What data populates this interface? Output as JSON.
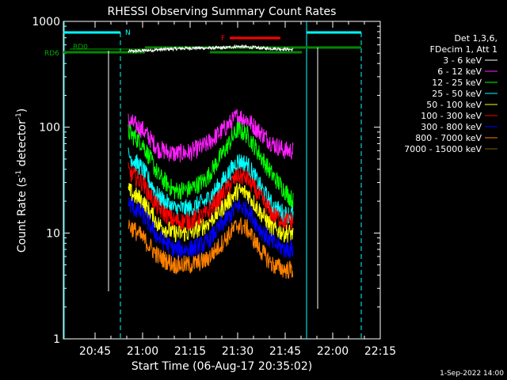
{
  "chart_data": {
    "type": "line",
    "title": "RHESSI Observing Summary Count Rates",
    "xlabel": "Start Time (06-Aug-17 20:35:02)",
    "ylabel_main": "Count Rate (s",
    "ylabel_sup": "-1",
    "ylabel_mid": " detector",
    "ylabel_sup2": "-1",
    "ylabel_end": ")",
    "y_scale": "log",
    "ylim": [
      1,
      1000
    ],
    "x_range_minutes": [
      0,
      100
    ],
    "xticks": [
      {
        "label": "20:45",
        "t": 10
      },
      {
        "label": "21:00",
        "t": 25
      },
      {
        "label": "21:15",
        "t": 40
      },
      {
        "label": "21:30",
        "t": 55
      },
      {
        "label": "21:45",
        "t": 70
      },
      {
        "label": "22:00",
        "t": 85
      },
      {
        "label": "22:15",
        "t": 100
      }
    ],
    "yticks": [
      {
        "label": "1",
        "v": 1
      },
      {
        "label": "10",
        "v": 10
      },
      {
        "label": "100",
        "v": 100
      },
      {
        "label": "1000",
        "v": 1000
      }
    ],
    "legend_header": [
      "Det 1,3,6,",
      "FDecim 1, Att 1"
    ],
    "series": [
      {
        "name": "3 - 6 keV",
        "color": "#ffffff",
        "x": [
          20.5,
          30,
          40,
          50,
          55,
          62,
          68.5,
          72.5
        ],
        "values": [
          520,
          540,
          560,
          560,
          580,
          560,
          550,
          540
        ]
      },
      {
        "name": "6 - 12 keV",
        "color": "#ff20ff",
        "x": [
          20.5,
          25,
          30,
          35,
          40,
          45,
          50,
          55,
          58,
          62,
          66,
          70,
          72.5
        ],
        "values": [
          115,
          95,
          62,
          56,
          58,
          68,
          92,
          128,
          118,
          90,
          70,
          60,
          60
        ]
      },
      {
        "name": "12 - 25 keV",
        "color": "#00ff00",
        "x": [
          20.5,
          25,
          30,
          35,
          40,
          45,
          50,
          55,
          58,
          62,
          66,
          70,
          72.5
        ],
        "values": [
          90,
          70,
          35,
          25,
          26,
          32,
          55,
          95,
          85,
          55,
          35,
          25,
          20
        ]
      },
      {
        "name": "25 - 50 keV",
        "color": "#00ffff",
        "x": [
          20.5,
          25,
          30,
          35,
          40,
          45,
          50,
          55,
          58,
          62,
          66,
          70,
          72.5
        ],
        "values": [
          55,
          40,
          22,
          17,
          17,
          20,
          30,
          48,
          45,
          28,
          18,
          15,
          15
        ]
      },
      {
        "name": "50 - 100 keV",
        "color": "#ffff00",
        "x": [
          20.5,
          25,
          30,
          35,
          40,
          45,
          50,
          55,
          58,
          62,
          66,
          70,
          72.5
        ],
        "values": [
          25,
          20,
          12,
          10,
          10,
          12,
          17,
          25,
          24,
          16,
          11,
          10,
          10
        ]
      },
      {
        "name": "100 - 300 keV",
        "color": "#ff0000",
        "x": [
          20.5,
          25,
          30,
          35,
          40,
          45,
          50,
          55,
          58,
          62,
          66,
          70,
          72.5
        ],
        "values": [
          38,
          30,
          17,
          13,
          13,
          15,
          23,
          35,
          33,
          22,
          15,
          13,
          13
        ]
      },
      {
        "name": "300 - 800 keV",
        "color": "#0000ff",
        "x": [
          20.5,
          25,
          30,
          35,
          40,
          45,
          50,
          55,
          58,
          62,
          66,
          70,
          72.5
        ],
        "values": [
          19,
          15,
          9,
          7,
          7,
          8,
          12,
          18,
          17,
          11,
          8,
          7,
          7
        ]
      },
      {
        "name": "800 - 7000 keV",
        "color": "#ff8000",
        "x": [
          20.5,
          25,
          30,
          35,
          40,
          45,
          50,
          55,
          58,
          62,
          66,
          70,
          72.5
        ],
        "values": [
          12,
          9,
          6,
          5,
          5,
          5.5,
          8,
          12,
          11,
          7,
          5,
          4.5,
          4.5
        ]
      },
      {
        "name": "7000 - 15000 keV",
        "color": "#806000",
        "x": [],
        "values": []
      }
    ],
    "annotations": [
      {
        "text": "N",
        "color": "#00ffff"
      },
      {
        "text": "F",
        "color": "#ff0000"
      },
      {
        "text": "RD0",
        "color": "#00aa00"
      },
      {
        "text": "RD6",
        "color": "#00aa00"
      }
    ],
    "grid": false,
    "legend_placement": "right"
  },
  "footer": {
    "date": "1-Sep-2022 14:00"
  }
}
